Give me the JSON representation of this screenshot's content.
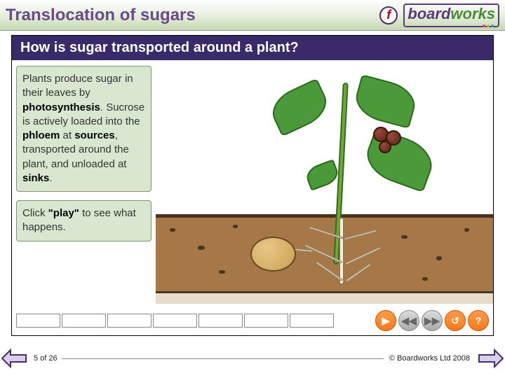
{
  "header": {
    "title": "Translocation of sugars",
    "title_color": "#6a4a8a",
    "flash_glyph": "f",
    "logo_board": "board",
    "logo_works": "works",
    "logo_board_color": "#5a3a7a",
    "logo_works_color": "#4a8a3a",
    "gradient_top": "#fefefe",
    "gradient_bottom": "#c5d8b0"
  },
  "question": {
    "text": "How is sugar transported around a plant?",
    "bg_color": "#3a2a6a",
    "text_color": "#ffffff",
    "fontsize": 20
  },
  "textbox1": {
    "line1": "Plants produce",
    "line2": "sugar in their leaves",
    "line3_a": "by ",
    "line3_bold": "photosynthesis",
    "line3_b": ".",
    "line4": "Sucrose is actively",
    "line5": "loaded into the",
    "line6_bold1": "phloem",
    "line6_mid": " at ",
    "line6_bold2": "sources",
    "line6_end": ",",
    "line7": "transported around",
    "line8": "the plant, and",
    "line9_a": "unloaded at ",
    "line9_bold": "sinks",
    "line9_b": ".",
    "bg_color": "#d8e8d0",
    "border_color": "#7a9a6a"
  },
  "textbox2": {
    "a": "Click ",
    "bold": "\"play\"",
    "b": " to see",
    "line2": "what happens."
  },
  "diagram": {
    "type": "infographic",
    "soil_color": "#a67848",
    "soil_border": "#4a3520",
    "subsoil_color": "#e8dcc8",
    "stem_color": "#6aaa3a",
    "stem_border": "#3a6a1a",
    "leaf_color": "#4a9a3a",
    "leaf_border": "#2a6a1a",
    "berry_color": "#5a2518",
    "berry_highlight": "#9a4a3a",
    "tuber_fill": "#c8a050",
    "tuber_highlight": "#e8c888",
    "root_color": "#f5eedd",
    "soil_flecks": [
      {
        "l": 20,
        "t": 240,
        "w": 8,
        "h": 5
      },
      {
        "l": 60,
        "t": 265,
        "w": 10,
        "h": 6
      },
      {
        "l": 110,
        "t": 235,
        "w": 7,
        "h": 5
      },
      {
        "l": 350,
        "t": 250,
        "w": 9,
        "h": 5
      },
      {
        "l": 400,
        "t": 280,
        "w": 8,
        "h": 6
      },
      {
        "l": 440,
        "t": 240,
        "w": 7,
        "h": 5
      },
      {
        "l": 90,
        "t": 300,
        "w": 9,
        "h": 5
      },
      {
        "l": 380,
        "t": 310,
        "w": 8,
        "h": 5
      }
    ]
  },
  "controls": {
    "progress_cells": 7,
    "play_glyph": "▶",
    "rewind_glyph": "◀◀",
    "ffwd_glyph": "▶▶",
    "reset_glyph": "↺",
    "help_glyph": "?",
    "active_bg": "#ff7a1a",
    "inactive_bg": "#bbbbbb"
  },
  "footer": {
    "page_counter": "5 of 26",
    "copyright": "© Boardworks Ltd 2008",
    "arrow_fill": "#d8d0e8",
    "arrow_stroke": "#4a2a6a"
  }
}
